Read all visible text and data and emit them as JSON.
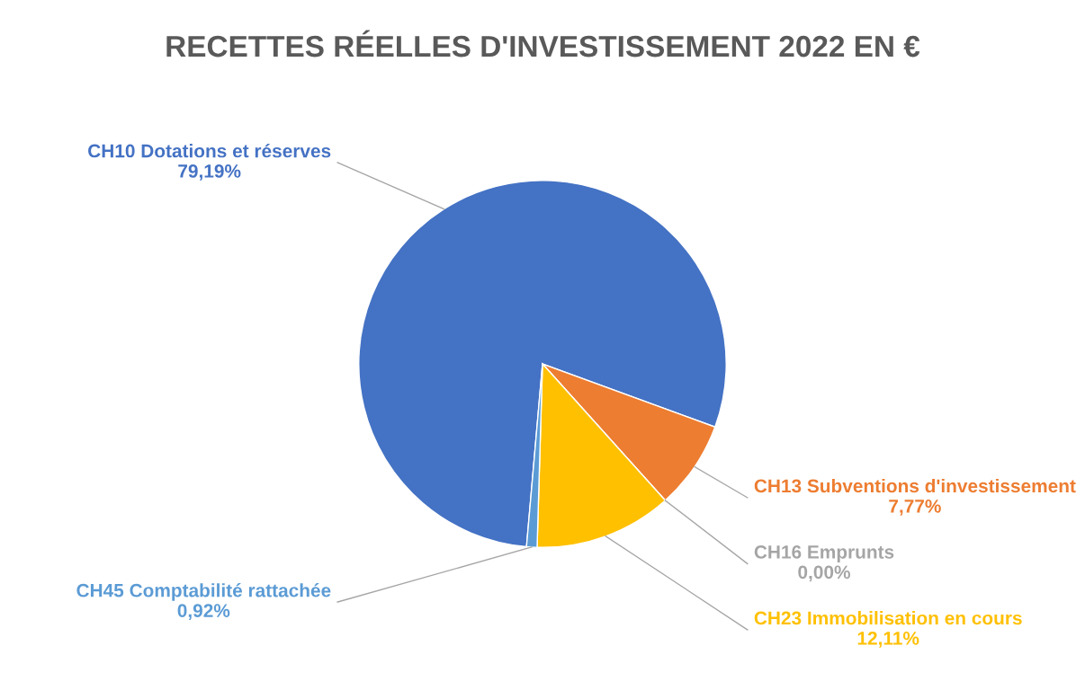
{
  "chart_data": {
    "type": "pie",
    "title": "RECETTES RÉELLES D'INVESTISSEMENT 2022 EN €",
    "categories": [
      "CH10 Dotations et réserves",
      "CH13 Subventions d'investissement",
      "CH16 Emprunts",
      "CH23 Immobilisation en cours",
      "CH45 Comptabilité rattachée"
    ],
    "values": [
      79.19,
      7.77,
      0.0,
      12.11,
      0.92
    ],
    "value_labels": [
      "79,19%",
      "7,77%",
      "0,00%",
      "12,11%",
      "0,92%"
    ],
    "colors": [
      "#4472c4",
      "#ed7d31",
      "#a5a5a5",
      "#ffc000",
      "#5b9bd5"
    ]
  }
}
